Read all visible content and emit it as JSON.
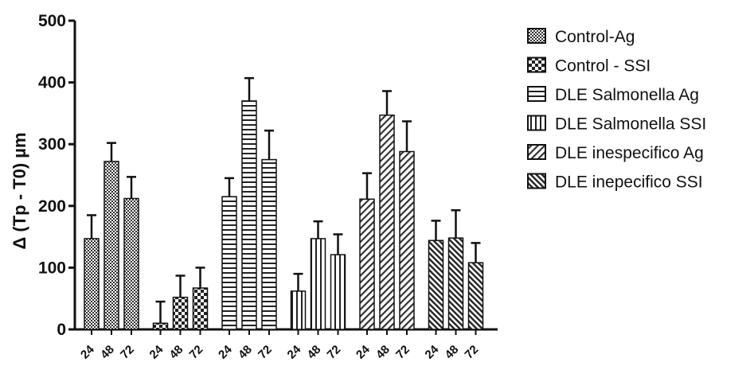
{
  "chart_data": {
    "type": "bar",
    "ylabel": "Δ (Tp - T0) µm",
    "xlabel": "",
    "ylim": [
      0,
      500
    ],
    "yticks": [
      "0",
      "100",
      "200",
      "300",
      "400",
      "500"
    ],
    "categories": [
      "24",
      "48",
      "72"
    ],
    "legend_position": "right",
    "series": [
      {
        "name": "Control-Ag",
        "values": [
          147,
          272,
          212
        ],
        "errors": [
          38,
          30,
          35
        ],
        "pattern": "dots-dense"
      },
      {
        "name": "Control - SSI",
        "values": [
          10,
          52,
          67
        ],
        "errors": [
          35,
          35,
          33
        ],
        "pattern": "checker"
      },
      {
        "name": "DLE Salmonella Ag",
        "values": [
          215,
          370,
          275
        ],
        "errors": [
          30,
          37,
          47
        ],
        "pattern": "horizontal"
      },
      {
        "name": "DLE Salmonella SSI",
        "values": [
          62,
          147,
          121
        ],
        "errors": [
          28,
          28,
          33
        ],
        "pattern": "vertical"
      },
      {
        "name": "DLE inespecifico Ag",
        "values": [
          211,
          347,
          288
        ],
        "errors": [
          42,
          39,
          49
        ],
        "pattern": "diagonal-up"
      },
      {
        "name": "DLE inepecifico SSI",
        "values": [
          144,
          148,
          108
        ],
        "errors": [
          32,
          45,
          32
        ],
        "pattern": "diagonal-down"
      }
    ]
  }
}
